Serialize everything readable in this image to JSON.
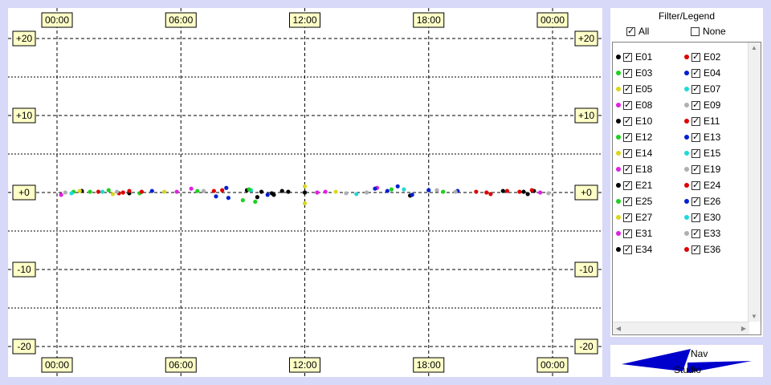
{
  "chart_data": {
    "type": "scatter",
    "x_ticks_top": [
      "00:00",
      "06:00",
      "12:00",
      "18:00",
      "00:00"
    ],
    "x_ticks_bottom": [
      "00:00",
      "06:00",
      "12:00",
      "18:00",
      "00:00"
    ],
    "y_ticks": [
      "+20",
      "+10",
      "+0",
      "-10",
      "-20"
    ],
    "y_tick_values": [
      20,
      10,
      0,
      -10,
      -20
    ],
    "x_range_hours": [
      0,
      24
    ],
    "ylim": [
      -20,
      20
    ],
    "grid": true,
    "legend_placement": "right",
    "series": [
      {
        "name": "E01",
        "color": "#000000",
        "points": [
          [
            1.2,
            0.2
          ],
          [
            3.5,
            -0.1
          ],
          [
            9.2,
            0.3
          ],
          [
            9.7,
            -0.6
          ],
          [
            10.4,
            -0.1
          ],
          [
            10.9,
            0.2
          ],
          [
            12.0,
            0.0
          ],
          [
            17.1,
            -0.4
          ],
          [
            22.6,
            0.1
          ],
          [
            23.1,
            0.2
          ]
        ]
      },
      {
        "name": "E02",
        "color": "#dd0000",
        "points": [
          [
            2.0,
            0.1
          ],
          [
            3.0,
            -0.1
          ],
          [
            3.5,
            0.2
          ],
          [
            8.0,
            0.3
          ],
          [
            20.3,
            0.1
          ],
          [
            21.0,
            -0.2
          ],
          [
            21.8,
            0.2
          ],
          [
            22.4,
            0.1
          ]
        ]
      },
      {
        "name": "E03",
        "color": "#20d020",
        "points": [
          [
            0.8,
            0.1
          ],
          [
            2.5,
            0.3
          ],
          [
            4.0,
            -0.1
          ],
          [
            6.8,
            0.2
          ],
          [
            9.6,
            -1.2
          ],
          [
            16.2,
            0.4
          ],
          [
            18.7,
            0.1
          ]
        ]
      },
      {
        "name": "E04",
        "color": "#0020d0",
        "points": [
          [
            4.6,
            0.2
          ],
          [
            7.7,
            -0.5
          ],
          [
            8.2,
            0.6
          ],
          [
            8.3,
            -0.7
          ],
          [
            10.2,
            -0.3
          ],
          [
            16.5,
            0.8
          ],
          [
            17.2,
            -0.3
          ],
          [
            19.4,
            0.2
          ]
        ]
      },
      {
        "name": "E05",
        "color": "#d8d820",
        "points": [
          [
            1.1,
            0.2
          ],
          [
            2.7,
            -0.2
          ],
          [
            5.2,
            0.1
          ],
          [
            12.0,
            0.8
          ],
          [
            12.0,
            -1.4
          ],
          [
            13.5,
            0.1
          ]
        ]
      },
      {
        "name": "E07",
        "color": "#20d8d8",
        "points": [
          [
            0.7,
            -0.1
          ],
          [
            2.2,
            0.1
          ],
          [
            9.4,
            0.3
          ],
          [
            14.5,
            -0.2
          ],
          [
            16.8,
            0.4
          ]
        ]
      },
      {
        "name": "E08",
        "color": "#e020e0",
        "points": [
          [
            0.2,
            -0.3
          ],
          [
            5.8,
            0.1
          ],
          [
            6.5,
            0.5
          ],
          [
            12.6,
            0.0
          ],
          [
            13.0,
            0.1
          ],
          [
            15.5,
            0.6
          ],
          [
            23.4,
            0.0
          ]
        ]
      },
      {
        "name": "E09",
        "color": "#b0b0b0",
        "points": [
          [
            0.4,
            0.0
          ],
          [
            2.9,
            0.1
          ],
          [
            7.1,
            0.2
          ],
          [
            14.0,
            -0.1
          ],
          [
            15.0,
            0.0
          ],
          [
            18.4,
            0.3
          ],
          [
            19.3,
            0.1
          ],
          [
            23.8,
            -0.1
          ]
        ]
      },
      {
        "name": "E10",
        "color": "#000000",
        "points": [
          [
            9.9,
            0.1
          ],
          [
            10.5,
            -0.3
          ],
          [
            11.2,
            0.1
          ],
          [
            21.6,
            0.2
          ],
          [
            22.8,
            -0.2
          ]
        ]
      },
      {
        "name": "E11",
        "color": "#dd0000",
        "points": [
          [
            3.2,
            0.0
          ],
          [
            4.1,
            0.1
          ],
          [
            7.6,
            0.2
          ],
          [
            20.8,
            0.0
          ],
          [
            23.0,
            0.3
          ]
        ]
      },
      {
        "name": "E12",
        "color": "#20d020",
        "points": [
          [
            1.6,
            0.1
          ],
          [
            9.0,
            -1.0
          ],
          [
            9.3,
            0.4
          ]
        ]
      },
      {
        "name": "E13",
        "color": "#0020d0",
        "points": [
          [
            15.4,
            0.5
          ],
          [
            16.0,
            0.2
          ],
          [
            18.0,
            0.3
          ]
        ]
      }
    ]
  },
  "legend": {
    "title": "Filter/Legend",
    "all_label": "All",
    "none_label": "None",
    "all_checked": true,
    "none_checked": false,
    "items": [
      {
        "label": "E01",
        "color": "#000000",
        "checked": true
      },
      {
        "label": "E02",
        "color": "#dd0000",
        "checked": true
      },
      {
        "label": "E03",
        "color": "#20d020",
        "checked": true
      },
      {
        "label": "E04",
        "color": "#0020d0",
        "checked": true
      },
      {
        "label": "E05",
        "color": "#d8d820",
        "checked": true
      },
      {
        "label": "E07",
        "color": "#20d8d8",
        "checked": true
      },
      {
        "label": "E08",
        "color": "#e020e0",
        "checked": true
      },
      {
        "label": "E09",
        "color": "#b0b0b0",
        "checked": true
      },
      {
        "label": "E10",
        "color": "#000000",
        "checked": true
      },
      {
        "label": "E11",
        "color": "#dd0000",
        "checked": true
      },
      {
        "label": "E12",
        "color": "#20d020",
        "checked": true
      },
      {
        "label": "E13",
        "color": "#0020d0",
        "checked": true
      },
      {
        "label": "E14",
        "color": "#d8d820",
        "checked": true
      },
      {
        "label": "E15",
        "color": "#20d8d8",
        "checked": true
      },
      {
        "label": "E18",
        "color": "#e020e0",
        "checked": true
      },
      {
        "label": "E19",
        "color": "#b0b0b0",
        "checked": true
      },
      {
        "label": "E21",
        "color": "#000000",
        "checked": true
      },
      {
        "label": "E24",
        "color": "#dd0000",
        "checked": true
      },
      {
        "label": "E25",
        "color": "#20d020",
        "checked": true
      },
      {
        "label": "E26",
        "color": "#0020d0",
        "checked": true
      },
      {
        "label": "E27",
        "color": "#d8d820",
        "checked": true
      },
      {
        "label": "E30",
        "color": "#20d8d8",
        "checked": true
      },
      {
        "label": "E31",
        "color": "#e020e0",
        "checked": true
      },
      {
        "label": "E33",
        "color": "#b0b0b0",
        "checked": true
      },
      {
        "label": "E34",
        "color": "#000000",
        "checked": true
      },
      {
        "label": "E36",
        "color": "#dd0000",
        "checked": true
      }
    ]
  },
  "nav": {
    "nav_label": "Nav",
    "studio_label": "Studio",
    "logo_color": "#0000cc"
  },
  "colors": {
    "background": "#d8d8f8",
    "tick_label_bg": "#ffffc8"
  }
}
